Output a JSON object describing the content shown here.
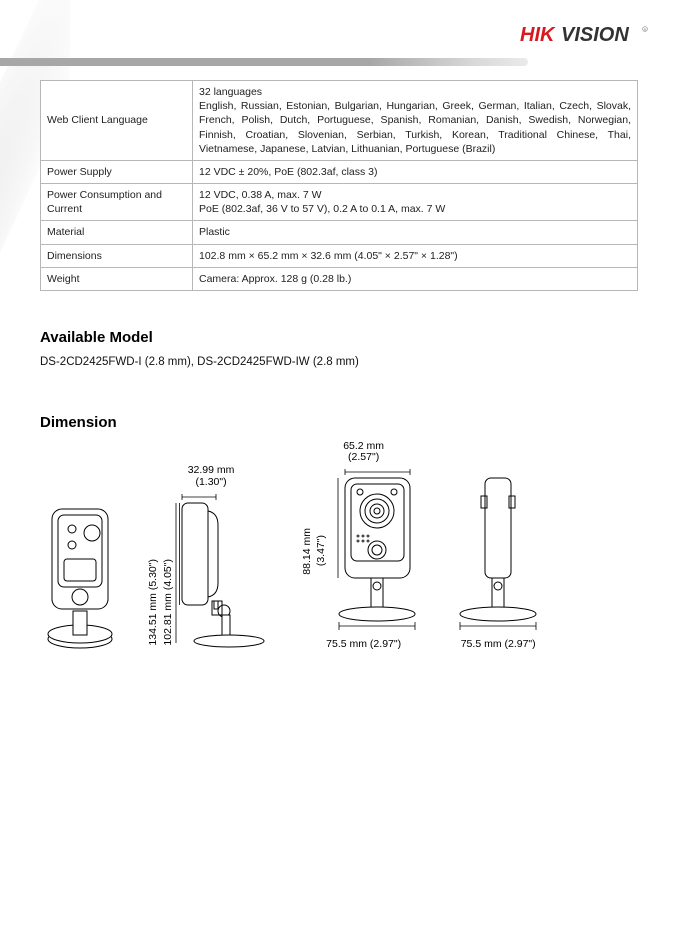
{
  "brand": {
    "hik": "HIK",
    "vision": "VISION"
  },
  "specs": [
    {
      "key": "Web Client Language",
      "val": "32 languages\nEnglish, Russian, Estonian, Bulgarian, Hungarian, Greek, German, Italian, Czech, Slovak, French, Polish, Dutch, Portuguese, Spanish, Romanian, Danish, Swedish, Norwegian, Finnish, Croatian, Slovenian, Serbian, Turkish, Korean, Traditional Chinese, Thai, Vietnamese, Japanese, Latvian, Lithuanian, Portuguese (Brazil)"
    },
    {
      "key": "Power Supply",
      "val": "12 VDC ± 20%, PoE (802.3af, class 3)"
    },
    {
      "key": "Power Consumption and Current",
      "val": "12 VDC, 0.38 A, max. 7 W\nPoE (802.3af, 36 V to 57 V), 0.2 A to 0.1 A, max. 7 W"
    },
    {
      "key": "Material",
      "val": "Plastic"
    },
    {
      "key": "Dimensions",
      "val": "102.8 mm × 65.2 mm × 32.6 mm (4.05\" × 2.57\" × 1.28\")"
    },
    {
      "key": "Weight",
      "val": "Camera: Approx. 128 g (0.28 lb.)"
    }
  ],
  "sections": {
    "available_model": {
      "title": "Available Model",
      "text": "DS-2CD2425FWD-I (2.8 mm), DS-2CD2425FWD-IW (2.8 mm)"
    },
    "dimension": {
      "title": "Dimension"
    }
  },
  "dims": {
    "fig2_top_w": "32.99 mm",
    "fig2_top_w2": "(1.30\")",
    "fig2_h1": "134.51 mm (5.30\")",
    "fig2_h2": "102.81 mm (4.05\")",
    "fig3_top_w": "65.2 mm",
    "fig3_top_w2": "(2.57\")",
    "fig3_h1": "88.14 mm",
    "fig3_h2": "(3.47\")",
    "fig3_base": "75.5 mm (2.97\")",
    "fig4_base": "75.5 mm (2.97\")"
  }
}
